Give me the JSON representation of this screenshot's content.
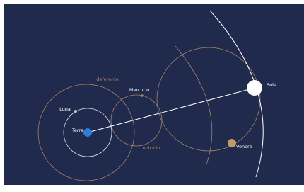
{
  "labels": {
    "deferente": "deferente",
    "mercurio": "Mercurio",
    "luna": "Luna",
    "terra": "Terra",
    "epiciclo": "epiciclo",
    "sole": "Sole",
    "venere": "Venere"
  }
}
